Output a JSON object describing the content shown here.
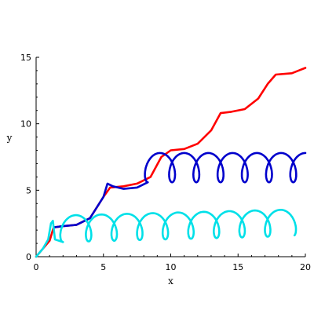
{
  "chart_data": {
    "type": "line",
    "title": "",
    "xlabel": "x",
    "ylabel": "y",
    "xlim": [
      0,
      20
    ],
    "ylim": [
      0,
      15
    ],
    "xticks": [
      0,
      5,
      10,
      15,
      20
    ],
    "yticks": [
      0,
      5,
      10,
      15
    ],
    "grid": false,
    "legend": "none",
    "series": [
      {
        "color": "#ff0000",
        "points": [
          [
            0,
            0
          ],
          [
            0.5,
            0.6
          ],
          [
            1,
            1.2
          ],
          [
            1.3,
            2.2
          ],
          [
            2,
            2.3
          ],
          [
            3,
            2.4
          ],
          [
            4,
            2.9
          ],
          [
            5,
            4.5
          ],
          [
            5.5,
            5.2
          ],
          [
            6.5,
            5.3
          ],
          [
            7.5,
            5.5
          ],
          [
            8.5,
            6.0
          ],
          [
            9.3,
            7.5
          ],
          [
            10,
            8.0
          ],
          [
            11,
            8.1
          ],
          [
            12,
            8.5
          ],
          [
            13,
            9.5
          ],
          [
            13.7,
            10.8
          ],
          [
            14.5,
            10.9
          ],
          [
            15.5,
            11.1
          ],
          [
            16.5,
            11.9
          ],
          [
            17.2,
            13.0
          ],
          [
            17.8,
            13.7
          ],
          [
            19,
            13.8
          ],
          [
            20,
            14.2
          ]
        ]
      },
      {
        "color": "#0000cc",
        "points": [
          [
            1.3,
            2.2
          ],
          [
            2,
            2.3
          ],
          [
            3,
            2.4
          ],
          [
            4,
            2.9
          ],
          [
            5,
            4.5
          ],
          [
            5.3,
            5.5
          ],
          [
            5.7,
            5.3
          ],
          [
            6.5,
            5.1
          ],
          [
            7.5,
            5.2
          ],
          [
            8.3,
            5.6
          ],
          [
            20,
            5.6
          ]
        ],
        "loop_center_y": 6.0,
        "loop_radius_x": 0.6,
        "loop_radius_y": 1.1,
        "loop_step": 1.8
      },
      {
        "color": "#00e0e8",
        "points": [
          [
            0,
            0
          ],
          [
            0.5,
            0.6
          ],
          [
            0.9,
            1.3
          ],
          [
            1.1,
            2.5
          ],
          [
            1.25,
            2.7
          ],
          [
            1.4,
            1.3
          ],
          [
            2,
            1.1
          ],
          [
            19,
            1.55
          ]
        ],
        "loop_center_y": 1.9,
        "loop_radius_x": 0.6,
        "loop_radius_y": 1.0,
        "loop_step": 1.9
      }
    ]
  }
}
